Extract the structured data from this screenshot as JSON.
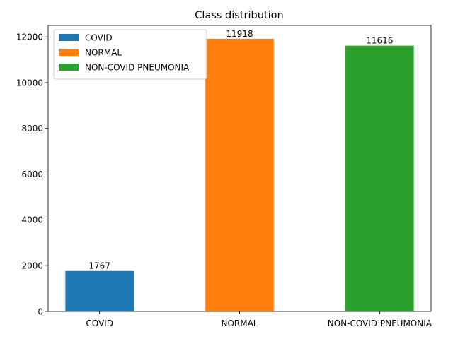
{
  "chart_data": {
    "type": "bar",
    "title": "Class distribution",
    "xlabel": "",
    "ylabel": "",
    "categories": [
      "COVID",
      "NORMAL",
      "NON-COVID PNEUMONIA"
    ],
    "values": [
      1767,
      11918,
      11616
    ],
    "data_labels": [
      "1767",
      "11918",
      "11616"
    ],
    "colors": [
      "#1f77b4",
      "#ff7f0e",
      "#2ca02c"
    ],
    "ylim": [
      0,
      12500
    ],
    "yticks": [
      0,
      2000,
      4000,
      6000,
      8000,
      10000,
      12000
    ],
    "ytick_labels": [
      "0",
      "2000",
      "4000",
      "6000",
      "8000",
      "10000",
      "12000"
    ],
    "grid": false,
    "legend": {
      "placement": "top-left",
      "entries": [
        "COVID",
        "NORMAL",
        "NON-COVID PNEUMONIA"
      ]
    }
  }
}
